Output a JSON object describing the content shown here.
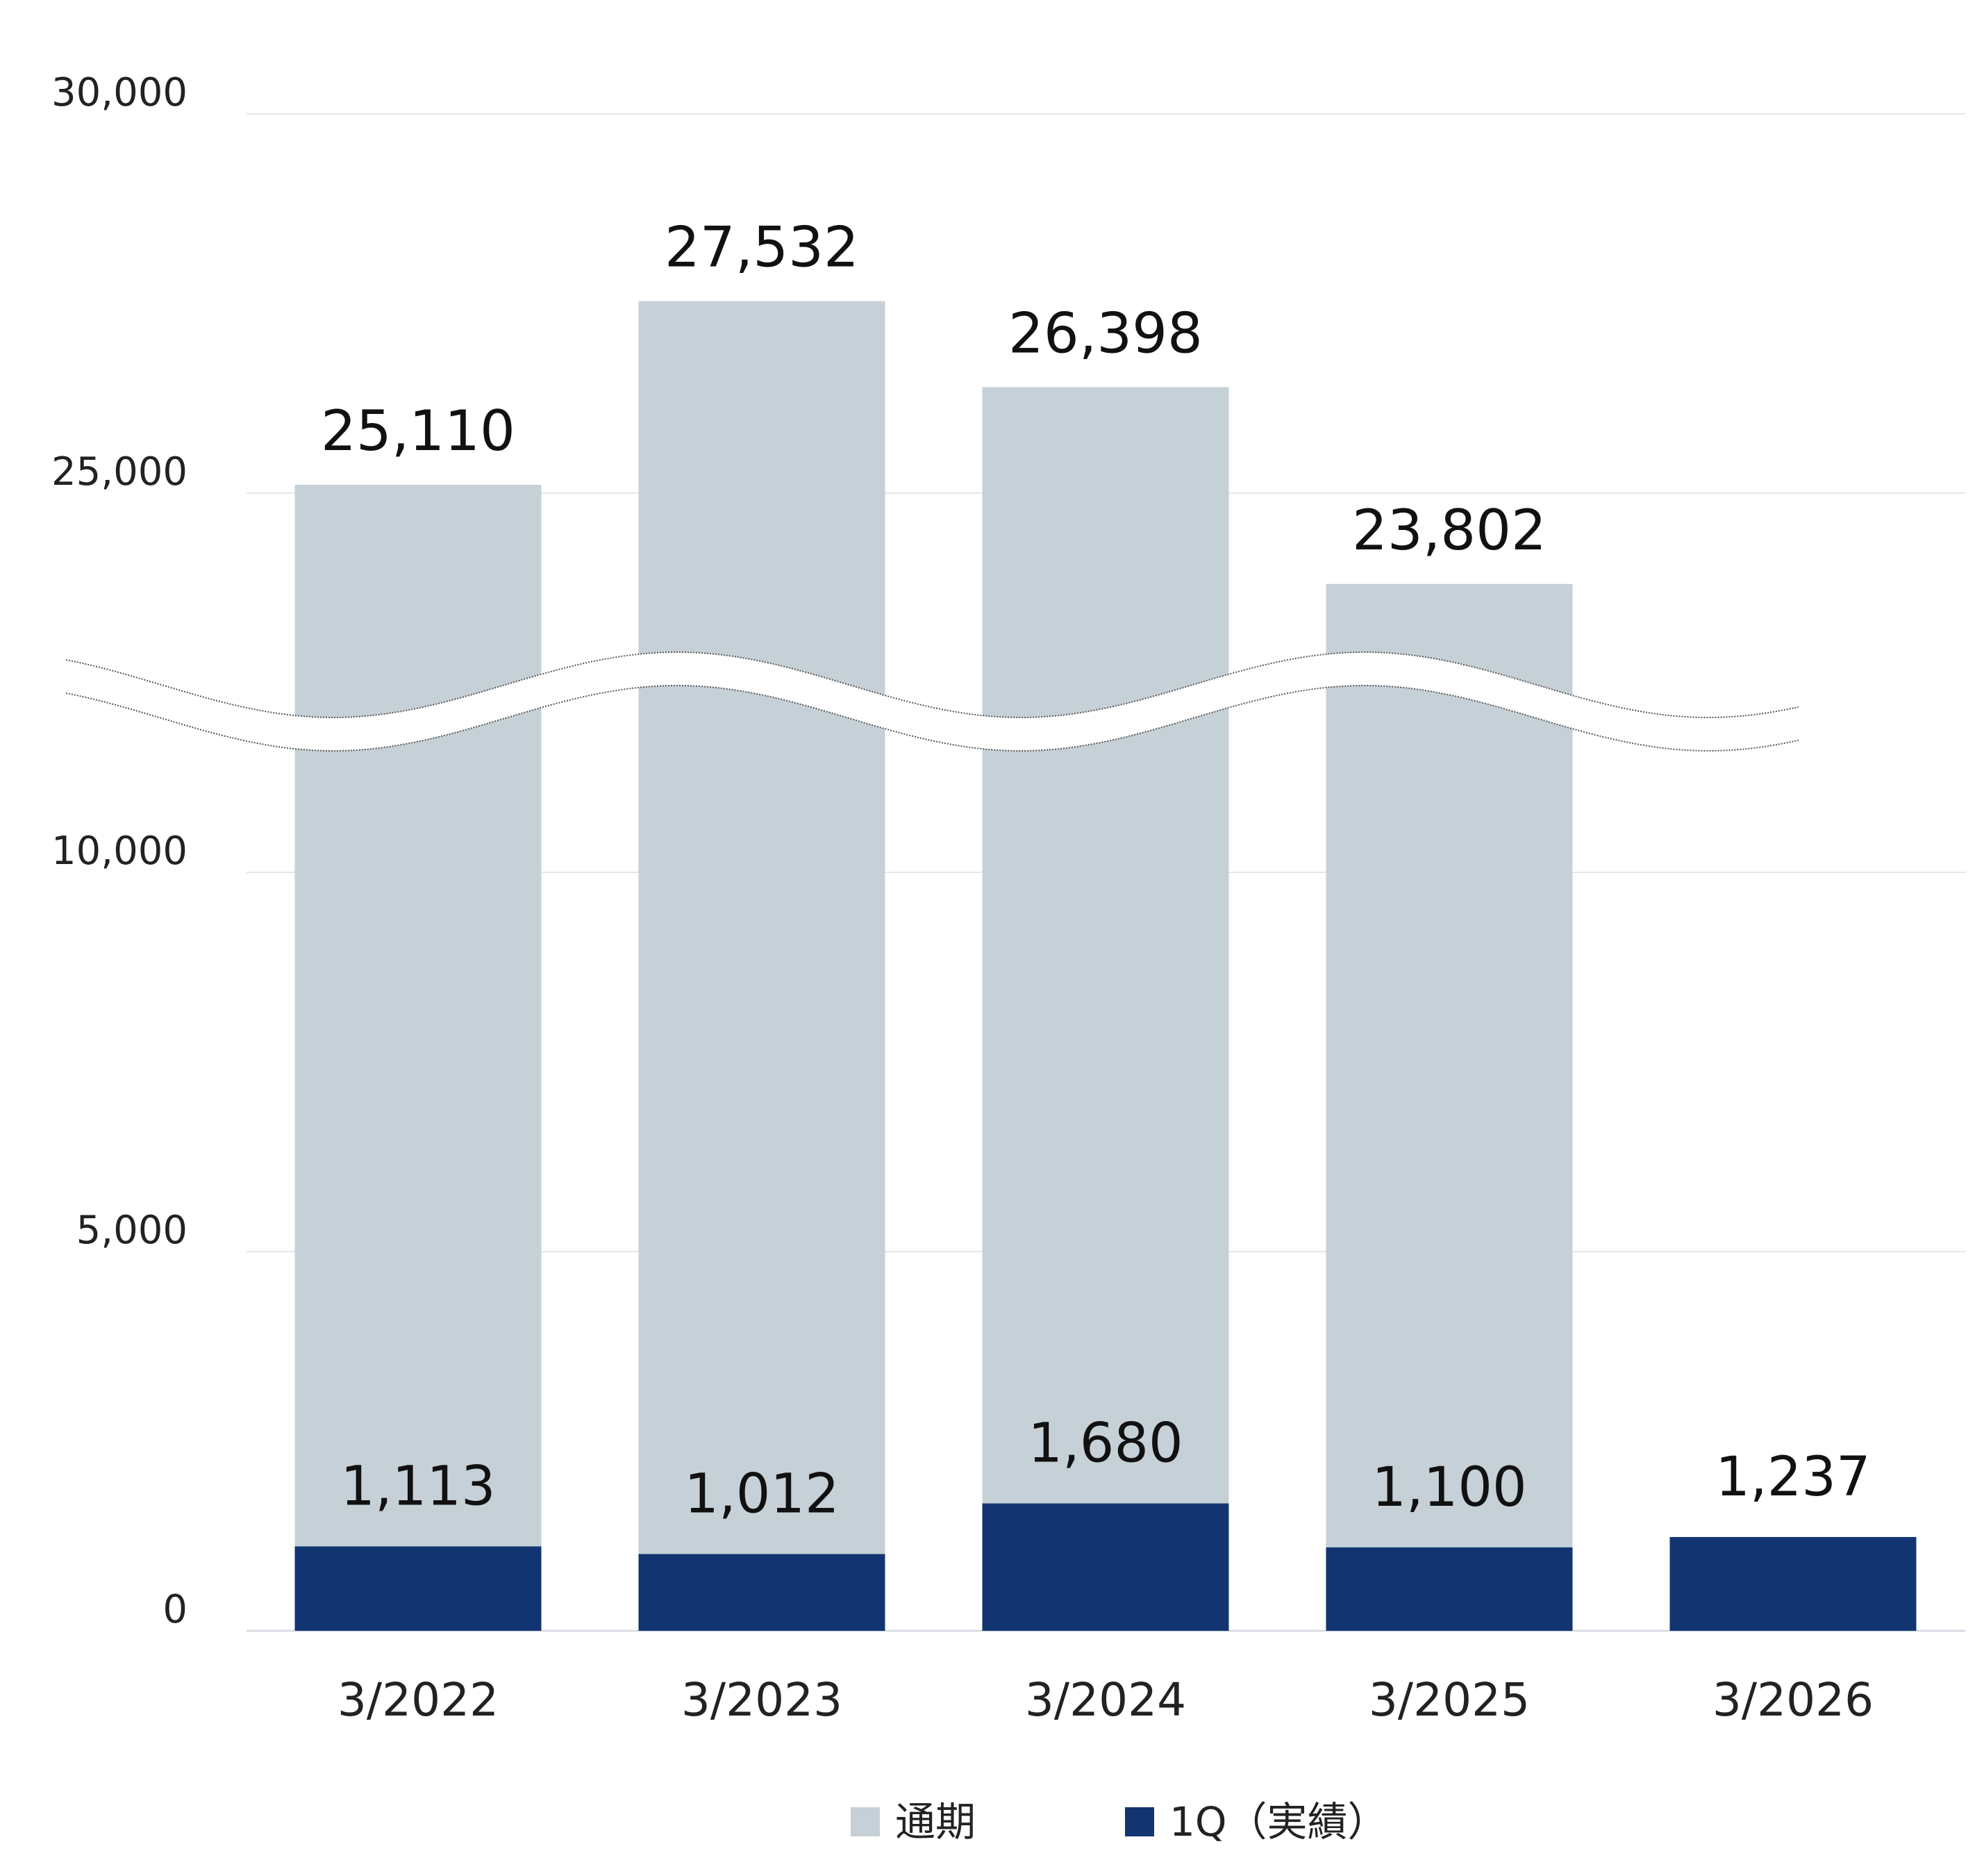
{
  "chart_data": {
    "type": "bar",
    "axis_break": {
      "lower_max": 10000,
      "upper_min": 20000
    },
    "ylim": [
      0,
      30000
    ],
    "yticks": [
      "0",
      "5,000",
      "10,000",
      "25,000",
      "30,000"
    ],
    "grid": true,
    "legend_position": "bottom-center",
    "categories": [
      "3/2022",
      "3/2023",
      "3/2024",
      "3/2025",
      "3/2026"
    ],
    "series": [
      {
        "name": "通期",
        "color": "#c5d0d7",
        "values": [
          25110,
          27532,
          26398,
          23802,
          null
        ],
        "labels": [
          "25,110",
          "27,532",
          "26,398",
          "23,802",
          ""
        ]
      },
      {
        "name": "1Q（実績）",
        "color": "#123572",
        "values": [
          1113,
          1012,
          1680,
          1100,
          1237
        ],
        "labels": [
          "1,113",
          "1,012",
          "1,680",
          "1,100",
          "1,237"
        ]
      }
    ]
  }
}
